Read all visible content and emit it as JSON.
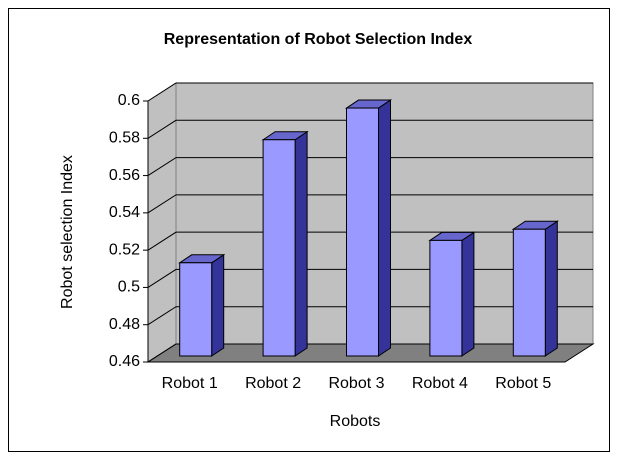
{
  "chart_data": {
    "type": "bar3d",
    "title": "Representation of Robot Selection Index",
    "x_label": "Robots",
    "y_label": "Robot selection Index",
    "categories": [
      "Robot 1",
      "Robot 2",
      "Robot 3",
      "Robot 4",
      "Robot 5"
    ],
    "values": [
      0.51,
      0.576,
      0.593,
      0.522,
      0.528
    ],
    "color": "#9999ff",
    "ylim": [
      0.46,
      0.6
    ],
    "yticks": [
      0.46,
      0.48,
      0.5,
      0.52,
      0.54,
      0.56,
      0.58,
      0.6
    ],
    "grid": true
  }
}
